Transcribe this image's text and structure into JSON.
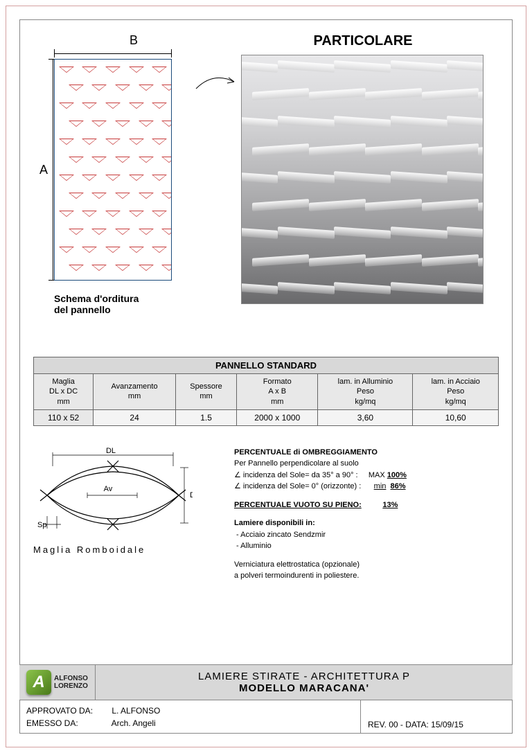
{
  "labels": {
    "dim_B": "B",
    "dim_A": "A",
    "schema_caption_l1": "Schema d'orditura",
    "schema_caption_l2": "del pannello",
    "detail_title": "PARTICOLARE"
  },
  "schema": {
    "panel_border_color": "#1a4a7a",
    "triangle_color": "#c73a3a",
    "rows": 12,
    "tris_per_row": 5
  },
  "detail_photo": {
    "gradient_top": "#e8e8ea",
    "gradient_bottom": "#6a6a6c",
    "rows": 9
  },
  "table": {
    "title": "PANNELLO STANDARD",
    "columns": [
      {
        "l1": "Maglia",
        "l2": "DL x DC",
        "l3": "mm"
      },
      {
        "l1": "Avanzamento",
        "l2": "mm",
        "l3": ""
      },
      {
        "l1": "Spessore",
        "l2": "mm",
        "l3": ""
      },
      {
        "l1": "Formato",
        "l2": "A x B",
        "l3": "mm"
      },
      {
        "l1": "lam. in Alluminio",
        "l2": "Peso",
        "l3": "kg/mq"
      },
      {
        "l1": "lam. in Acciaio",
        "l2": "Peso",
        "l3": "kg/mq"
      }
    ],
    "row": [
      "110 x 52",
      "24",
      "1.5",
      "2000 x 1000",
      "3,60",
      "10,60"
    ],
    "header_bg": "#e8e8e8",
    "title_bg": "#d8d8d8",
    "border_color": "#666666"
  },
  "rhomboid": {
    "caption": "Maglia Romboidale",
    "labels": {
      "DL": "DL",
      "DC": "DC",
      "Av": "Av",
      "Sp": "Sp"
    },
    "stroke": "#000000"
  },
  "specs": {
    "shading_title": "PERCENTUALE di OMBREGGIAMENTO",
    "shading_sub": "Per Pannello perpendicolare al suolo",
    "shading_line1_label": "∠ incidenza del Sole= da 35° a 90°   :",
    "shading_line1_val_prefix": "MAX",
    "shading_line1_val": "100%",
    "shading_line2_label": "∠ incidenza del Sole= 0° (orizzonte) :",
    "shading_line2_val_prefix": "min",
    "shading_line2_val": "86%",
    "void_title": "PERCENTUALE  VUOTO SU PIENO:",
    "void_val": "13%",
    "materials_title": "Lamiere disponibili in:",
    "materials": [
      "Acciaio zincato Sendzmir",
      "Alluminio"
    ],
    "coating_l1": "Verniciatura elettrostatica (opzionale)",
    "coating_l2": "a polveri termoindurenti in poliestere."
  },
  "titleblock": {
    "logo_letter": "A",
    "logo_name_l1": "ALFONSO",
    "logo_name_l2": "LORENZO",
    "logo_green_light": "#8bc34a",
    "logo_green_dark": "#4a7a1a",
    "title_l1": "LAMIERE STIRATE - ARCHITETTURA  P",
    "title_l2": "MODELLO MARACANA'",
    "approved_label": "APPROVATO DA:",
    "approved_name": "L. ALFONSO",
    "issued_label": "EMESSO DA:",
    "issued_name": "Arch. Angeli",
    "rev_label": "REV. 00 - DATA:",
    "rev_date": "15/09/15",
    "bg": "#d8d8d8"
  }
}
